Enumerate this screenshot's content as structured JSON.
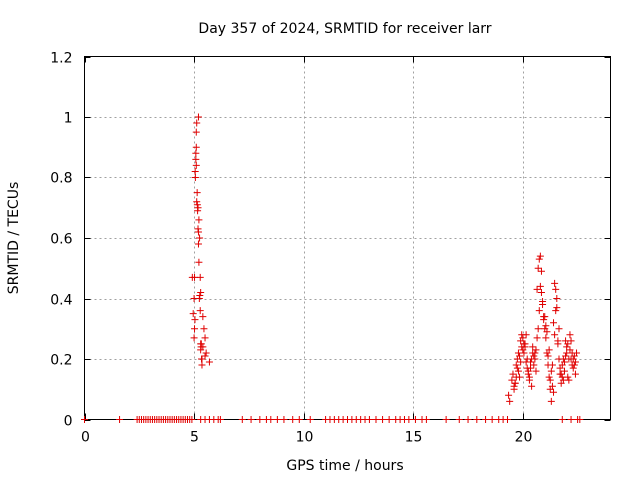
{
  "chart_data": {
    "type": "scatter",
    "title": "Day 357 of 2024, SRMTID for receiver larr",
    "xlabel": "GPS time / hours",
    "ylabel": "SRMTID / TECUs",
    "xlim": [
      0,
      24.0
    ],
    "ylim": [
      0,
      1.2
    ],
    "x_ticks": [
      0,
      5,
      10,
      15,
      20
    ],
    "y_ticks": [
      0,
      0.2,
      0.4,
      0.6,
      0.8,
      1,
      1.2
    ],
    "x_tick_labels": [
      "0",
      "5",
      "10",
      "15",
      "20"
    ],
    "y_tick_labels": [
      "0",
      "0.2",
      "0.4",
      "0.6",
      "0.8",
      "1",
      "1.2"
    ],
    "grid": true,
    "marker": "+",
    "color": "#e00000",
    "series": [
      {
        "name": "SRMTID",
        "x": [
          0.0,
          1.6,
          2.4,
          2.5,
          2.6,
          2.7,
          2.8,
          2.9,
          3.0,
          3.1,
          3.2,
          3.3,
          3.4,
          3.5,
          3.6,
          3.7,
          3.8,
          3.9,
          4.0,
          4.1,
          4.2,
          4.3,
          4.4,
          4.5,
          4.6,
          4.7,
          4.8,
          4.9,
          5.3,
          5.5,
          5.7,
          5.9,
          6.1,
          6.2,
          7.2,
          7.6,
          8.0,
          8.3,
          8.5,
          8.8,
          9.1,
          9.5,
          9.8,
          10.3,
          11.0,
          11.2,
          11.4,
          11.6,
          11.8,
          12.0,
          12.2,
          12.4,
          12.6,
          12.8,
          13.0,
          13.3,
          13.6,
          13.9,
          14.2,
          14.4,
          14.6,
          14.8,
          15.1,
          15.4,
          15.6,
          16.5,
          17.1,
          17.5,
          17.9,
          18.3,
          18.6,
          18.9,
          19.1,
          19.3,
          21.8,
          22.2,
          22.5,
          22.6,
          4.92,
          4.96,
          5.0,
          5.02,
          5.05,
          5.08,
          5.1,
          5.12,
          5.15,
          5.18,
          5.2,
          5.22,
          5.25,
          5.28,
          5.3,
          5.33,
          5.36,
          5.4,
          5.45,
          5.5,
          5.55,
          5.7,
          5.02,
          5.04,
          5.06,
          5.08,
          5.1,
          5.12,
          5.14,
          5.16,
          5.18,
          5.2,
          5.22,
          5.24,
          5.26,
          5.28,
          5.3,
          5.32,
          5.34,
          5.36,
          5.0,
          5.1,
          5.2,
          5.3,
          5.4,
          5.5,
          19.35,
          19.4,
          19.5,
          19.55,
          19.6,
          19.65,
          19.7,
          19.75,
          19.8,
          19.85,
          19.9,
          19.95,
          20.0,
          20.05,
          20.1,
          20.15,
          20.2,
          20.25,
          20.3,
          20.35,
          20.4,
          20.45,
          20.5,
          20.55,
          20.6,
          20.65,
          20.7,
          20.75,
          20.8,
          20.85,
          20.9,
          20.95,
          21.0,
          21.05,
          21.1,
          21.15,
          21.2,
          21.25,
          21.3,
          21.35,
          21.4,
          21.45,
          21.5,
          21.55,
          21.6,
          21.65,
          21.7,
          21.75,
          21.8,
          21.85,
          21.9,
          21.95,
          22.0,
          22.05,
          22.1,
          22.15,
          22.2,
          22.25,
          22.3,
          22.35,
          22.4,
          22.45,
          19.6,
          19.7,
          19.8,
          19.9,
          20.0,
          20.1,
          20.2,
          20.3,
          20.4,
          20.5,
          20.6,
          20.7,
          20.8,
          20.9,
          21.0,
          21.1,
          21.2,
          21.3,
          21.4,
          21.5,
          21.6,
          21.7,
          21.8,
          21.9,
          22.0,
          22.1,
          22.2,
          22.3,
          22.4,
          19.65,
          19.75,
          19.85,
          19.95,
          20.05,
          20.15,
          20.25,
          20.35,
          20.45,
          20.55,
          20.65,
          20.75,
          20.85,
          20.95,
          21.05,
          21.15,
          21.25,
          21.35,
          21.45,
          21.55,
          21.65,
          21.75,
          21.85,
          21.95,
          22.05,
          22.15,
          22.25,
          22.35
        ],
        "y": [
          0,
          0,
          0,
          0,
          0,
          0,
          0,
          0,
          0,
          0,
          0,
          0,
          0,
          0,
          0,
          0,
          0,
          0,
          0,
          0,
          0,
          0,
          0,
          0,
          0,
          0,
          0,
          0,
          0,
          0,
          0,
          0,
          0,
          0,
          0,
          0,
          0,
          0,
          0,
          0,
          0,
          0,
          0,
          0,
          0,
          0,
          0,
          0,
          0,
          0,
          0,
          0,
          0,
          0,
          0,
          0,
          0,
          0,
          0,
          0,
          0,
          0,
          0,
          0,
          0,
          0,
          0,
          0,
          0,
          0,
          0,
          0,
          0,
          0,
          0,
          0,
          0,
          0,
          0.47,
          0.35,
          0.4,
          0.47,
          0.82,
          0.86,
          0.9,
          0.98,
          0.71,
          0.7,
          1.0,
          0.66,
          0.6,
          0.47,
          0.42,
          0.25,
          0.2,
          0.24,
          0.3,
          0.27,
          0.22,
          0.19,
          0.3,
          0.33,
          0.8,
          0.88,
          0.95,
          0.72,
          0.75,
          0.69,
          0.63,
          0.58,
          0.52,
          0.4,
          0.41,
          0.36,
          0.25,
          0.24,
          0.2,
          0.18,
          0.27,
          0.84,
          0.62,
          0.23,
          0.34,
          0.21,
          0.08,
          0.06,
          0.13,
          0.15,
          0.1,
          0.12,
          0.18,
          0.2,
          0.22,
          0.14,
          0.26,
          0.28,
          0.27,
          0.25,
          0.24,
          0.28,
          0.17,
          0.15,
          0.14,
          0.17,
          0.2,
          0.22,
          0.18,
          0.22,
          0.23,
          0.43,
          0.5,
          0.53,
          0.54,
          0.42,
          0.38,
          0.33,
          0.3,
          0.27,
          0.22,
          0.18,
          0.14,
          0.1,
          0.06,
          0.18,
          0.32,
          0.45,
          0.43,
          0.4,
          0.25,
          0.2,
          0.15,
          0.12,
          0.18,
          0.13,
          0.16,
          0.21,
          0.24,
          0.25,
          0.2,
          0.28,
          0.26,
          0.22,
          0.2,
          0.18,
          0.15,
          0.22,
          0.11,
          0.14,
          0.16,
          0.19,
          0.23,
          0.25,
          0.2,
          0.13,
          0.11,
          0.21,
          0.16,
          0.3,
          0.44,
          0.39,
          0.34,
          0.29,
          0.23,
          0.16,
          0.09,
          0.36,
          0.26,
          0.17,
          0.14,
          0.19,
          0.22,
          0.13,
          0.2,
          0.17,
          0.19,
          0.12,
          0.17,
          0.21,
          0.24,
          0.22,
          0.19,
          0.16,
          0.19,
          0.24,
          0.2,
          0.27,
          0.36,
          0.49,
          0.34,
          0.31,
          0.21,
          0.13,
          0.11,
          0.28,
          0.37,
          0.3,
          0.15,
          0.2,
          0.26,
          0.14,
          0.23,
          0.18,
          0.21
        ]
      }
    ]
  }
}
